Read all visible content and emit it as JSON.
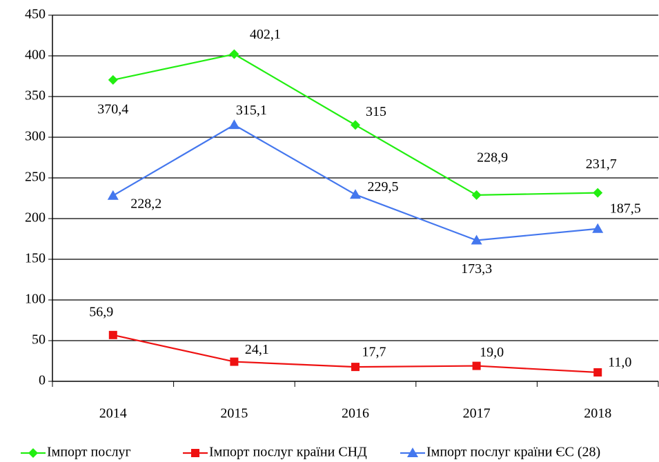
{
  "chart_data": {
    "type": "line",
    "categories": [
      "2014",
      "2015",
      "2016",
      "2017",
      "2018"
    ],
    "series": [
      {
        "name": "Імпорт послуг",
        "color": "#22ee11",
        "marker": "diamond",
        "values": [
          370.4,
          402.1,
          315,
          228.9,
          231.7
        ],
        "value_labels": [
          "370,4",
          "402,1",
          "315",
          "228,9",
          "231,7"
        ]
      },
      {
        "name": "Імпорт послуг країни СНД",
        "color": "#ee1111",
        "marker": "square",
        "values": [
          56.9,
          24.1,
          17.7,
          19.0,
          11.0
        ],
        "value_labels": [
          "56,9",
          "24,1",
          "17,7",
          "19,0",
          "11,0"
        ]
      },
      {
        "name": "Імпорт послуг країни ЄС (28)",
        "color": "#4477ee",
        "marker": "triangle",
        "values": [
          228.2,
          315.1,
          229.5,
          173.3,
          187.5
        ],
        "value_labels": [
          "228,2",
          "315,1",
          "229,5",
          "173,3",
          "187,5"
        ]
      }
    ],
    "ylim": [
      0,
      450
    ],
    "yticks": [
      0,
      50,
      100,
      150,
      200,
      250,
      300,
      350,
      400,
      450
    ],
    "grid": true,
    "legend": "bottom"
  }
}
